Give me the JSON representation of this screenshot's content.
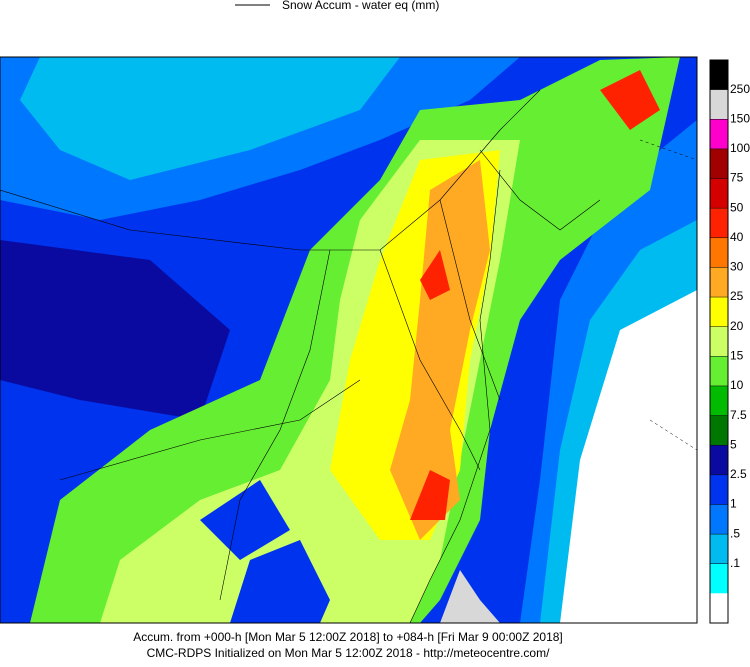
{
  "header": {
    "legend_line": "Snow Accum - water eq (mm)"
  },
  "colorbar": {
    "labels": [
      "250",
      "150",
      "100",
      "75",
      "50",
      "40",
      "30",
      "25",
      "20",
      "15",
      "10",
      "7.5",
      "5",
      "2.5",
      "1",
      ".5",
      ".1"
    ],
    "colors": [
      "#000000",
      "#d8d8d8",
      "#ff00cc",
      "#a00000",
      "#d40000",
      "#ff2200",
      "#ff7700",
      "#ffaa22",
      "#ffff00",
      "#ccff66",
      "#66ee33",
      "#00bb00",
      "#007700",
      "#0a0aa0",
      "#0033ee",
      "#0077ff",
      "#00bbf0",
      "#00ffff",
      "#ffffff"
    ]
  },
  "footer": {
    "line1": "Accum. from +000-h [Mon Mar 5 12:00Z 2018] to +084-h [Fri Mar 9 00:00Z 2018]",
    "line2": "CMC-RDPS Initialized on Mon Mar 5 12:00Z 2018 - http://meteocentre.com/"
  }
}
